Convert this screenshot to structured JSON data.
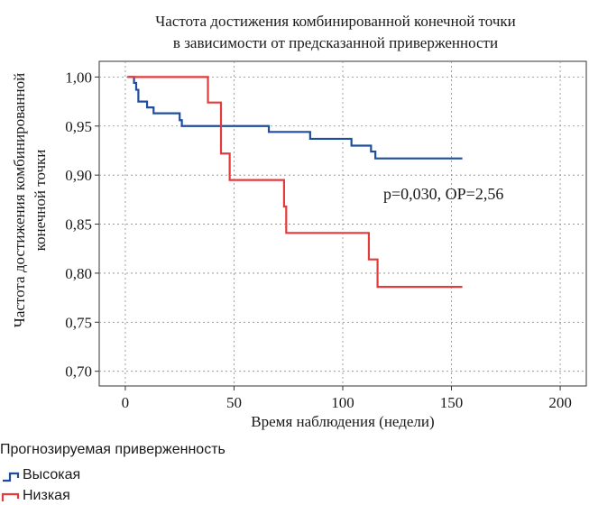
{
  "chart_data": {
    "type": "line",
    "title_lines": [
      "Частота достижения комбинированной конечной точки",
      "в зависимости от предсказанной приверженности"
    ],
    "xlabel": "Время наблюдения (недели)",
    "ylabel_lines": [
      "Частота достижения комбинированной",
      "конечной точки"
    ],
    "xlim": [
      -12,
      212
    ],
    "ylim": [
      0.685,
      1.016
    ],
    "xticks": [
      0,
      50,
      100,
      150,
      200
    ],
    "xtick_labels": [
      "0",
      "50",
      "100",
      "150",
      "200"
    ],
    "yticks": [
      1.0,
      0.95,
      0.9,
      0.85,
      0.8,
      0.75,
      0.7
    ],
    "ytick_labels": [
      "1,00",
      "0,95",
      "0,90",
      "0,85",
      "0,80",
      "0,75",
      "0,70"
    ],
    "grid": true,
    "step": "post",
    "annotation": "p=0,030, ОР=2,56",
    "legend": {
      "title": "Прогнозируемая приверженность",
      "placement": "bottom-left"
    },
    "series": [
      {
        "name": "Высокая",
        "color": "#1f4e9c",
        "x": [
          1,
          4,
          5,
          6,
          8,
          10,
          13,
          25,
          26,
          66,
          85,
          104,
          113,
          115,
          155
        ],
        "y": [
          1.0,
          0.994,
          0.987,
          0.975,
          0.975,
          0.969,
          0.963,
          0.956,
          0.95,
          0.944,
          0.937,
          0.93,
          0.924,
          0.917,
          0.917
        ]
      },
      {
        "name": "Низкая",
        "color": "#e33b3b",
        "x": [
          1,
          38,
          44,
          48,
          73,
          74,
          112,
          116,
          155
        ],
        "y": [
          1.0,
          0.974,
          0.922,
          0.895,
          0.868,
          0.841,
          0.814,
          0.786,
          0.786
        ]
      }
    ]
  }
}
